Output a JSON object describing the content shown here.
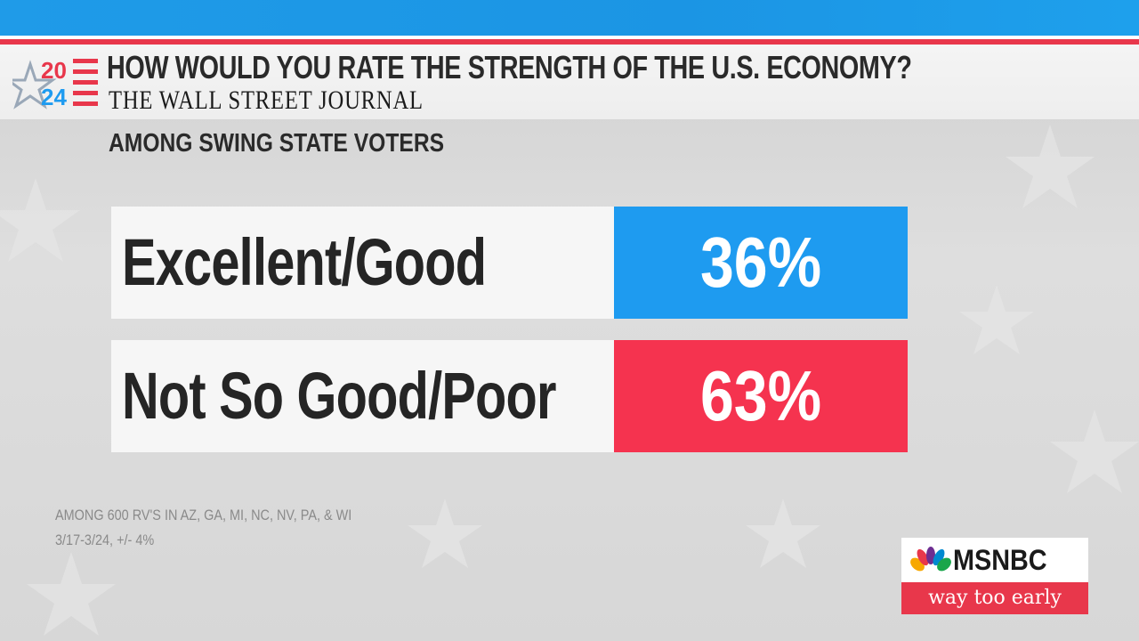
{
  "header": {
    "logo": {
      "line1": "20",
      "line2": "24"
    },
    "headline": "HOW WOULD YOU RATE THE STRENGTH OF THE U.S. ECONOMY?",
    "source": "THE WALL STREET JOURNAL"
  },
  "subhead": "AMONG SWING STATE VOTERS",
  "results": [
    {
      "label": "Excellent/Good",
      "value": "36%",
      "color": "#1e9bf0"
    },
    {
      "label": "Not So Good/Poor",
      "value": "63%",
      "color": "#f5334f"
    }
  ],
  "footnote": {
    "line1": "AMONG 600 RV'S IN AZ, GA, MI, NC, NV, PA, & WI",
    "line2": "3/17-3/24, +/- 4%"
  },
  "brand": {
    "network": "MSNBC",
    "show": "way too early",
    "icon": "peacock-logo-icon"
  },
  "colors": {
    "top_bar": "#1f9be8",
    "accent_red": "#e8374b",
    "accent_blue": "#1e9bf0"
  }
}
